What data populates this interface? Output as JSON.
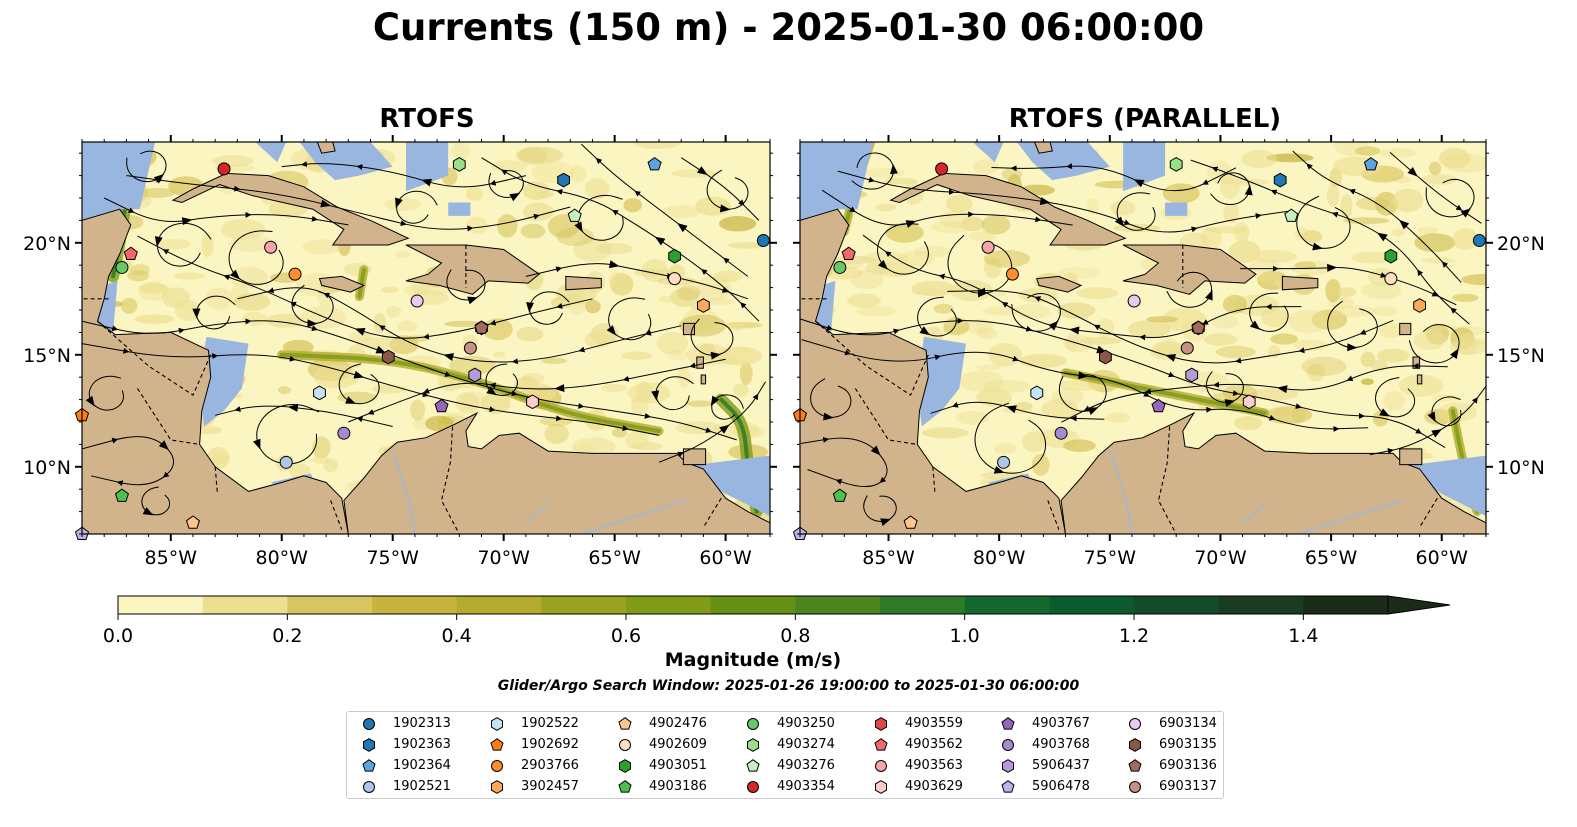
{
  "suptitle": "Currents (150 m) - 2025-01-30 06:00:00",
  "panels": [
    {
      "title": "RTOFS"
    },
    {
      "title": "RTOFS (PARALLEL)"
    }
  ],
  "colors": {
    "land": "#d2b48c",
    "shallow_water": "#99b6e0",
    "coast": "#000000",
    "border": "#000000",
    "river": "#9db8d9",
    "streamline": "#000000"
  },
  "colorbar": {
    "label": "Magnitude (m/s)",
    "ticks": [
      "0.0",
      "0.2",
      "0.4",
      "0.6",
      "0.8",
      "1.0",
      "1.2",
      "1.4"
    ],
    "range": [
      0,
      1.5
    ],
    "extend": "max",
    "colors": [
      "#fbf5c2",
      "#ecdf92",
      "#d8c560",
      "#c7b43f",
      "#b3aa2e",
      "#9aa221",
      "#7f9b17",
      "#659014",
      "#4c841f",
      "#2f7a27",
      "#15682d",
      "#0c5a2d",
      "#144c2a",
      "#1a3c22",
      "#1a2c18"
    ]
  },
  "search_window": "Glider/Argo Search Window: 2025-01-26 19:00:00 to 2025-01-30 06:00:00",
  "chart_data": {
    "type": "map",
    "title": "Currents (150 m) - 2025-01-30 06:00:00",
    "variable": "current magnitude (m/s) with streamlines",
    "panels": [
      "RTOFS",
      "RTOFS (PARALLEL)"
    ],
    "xlim": [
      -89,
      -58
    ],
    "ylim": [
      7,
      24.5
    ],
    "xticks": [
      "85°W",
      "80°W",
      "75°W",
      "70°W",
      "65°W",
      "60°W"
    ],
    "xtick_values": [
      -85,
      -80,
      -75,
      -70,
      -65,
      -60
    ],
    "yticks": [
      "10°N",
      "15°N",
      "20°N"
    ],
    "ytick_values": [
      10,
      15,
      20
    ],
    "floats": [
      {
        "id": "1902313",
        "lon": -58.3,
        "lat": 20.1,
        "marker": "circle",
        "color": "#1f77b4"
      },
      {
        "id": "1902363",
        "lon": -67.3,
        "lat": 22.8,
        "marker": "hexagon",
        "color": "#1f77b4"
      },
      {
        "id": "1902364",
        "lon": -63.2,
        "lat": 23.5,
        "marker": "pentagon",
        "color": "#5aa5e0"
      },
      {
        "id": "1902521",
        "lon": -79.8,
        "lat": 10.2,
        "marker": "circle",
        "color": "#aec7e8"
      },
      {
        "id": "1902522",
        "lon": -78.3,
        "lat": 13.3,
        "marker": "hexagon",
        "color": "#c6e2f5"
      },
      {
        "id": "1902692",
        "lon": -89.0,
        "lat": 12.3,
        "marker": "pentagon",
        "color": "#ff7f0e"
      },
      {
        "id": "2903766",
        "lon": -79.4,
        "lat": 18.6,
        "marker": "circle",
        "color": "#ff8c2e"
      },
      {
        "id": "3902457",
        "lon": -61.0,
        "lat": 17.2,
        "marker": "hexagon",
        "color": "#ffa75a"
      },
      {
        "id": "4902476",
        "lon": -84.0,
        "lat": 7.5,
        "marker": "pentagon",
        "color": "#ffc68c"
      },
      {
        "id": "4902609",
        "lon": -62.3,
        "lat": 18.4,
        "marker": "circle",
        "color": "#ffe0c0"
      },
      {
        "id": "4903051",
        "lon": -62.3,
        "lat": 19.4,
        "marker": "hexagon",
        "color": "#2ca02c"
      },
      {
        "id": "4903186",
        "lon": -87.2,
        "lat": 8.7,
        "marker": "pentagon",
        "color": "#4cc24c"
      },
      {
        "id": "4903250",
        "lon": -87.2,
        "lat": 18.9,
        "marker": "circle",
        "color": "#66c866"
      },
      {
        "id": "4903274",
        "lon": -72.0,
        "lat": 23.5,
        "marker": "hexagon",
        "color": "#98df8a"
      },
      {
        "id": "4903276",
        "lon": -66.8,
        "lat": 21.2,
        "marker": "pentagon",
        "color": "#c7f0c0"
      },
      {
        "id": "4903354",
        "lon": -82.6,
        "lat": 23.3,
        "marker": "circle",
        "color": "#d62728"
      },
      {
        "id": "4903559",
        "lon": -71.0,
        "lat": 16.2,
        "marker": "hexagon",
        "color": "#e04848"
      },
      {
        "id": "4903562",
        "lon": -86.8,
        "lat": 19.5,
        "marker": "pentagon",
        "color": "#f06868"
      },
      {
        "id": "4903563",
        "lon": -80.5,
        "lat": 19.8,
        "marker": "circle",
        "color": "#f4a6a6"
      },
      {
        "id": "4903629",
        "lon": -68.7,
        "lat": 12.9,
        "marker": "hexagon",
        "color": "#ffcccc"
      },
      {
        "id": "4903767",
        "lon": -72.8,
        "lat": 12.7,
        "marker": "pentagon",
        "color": "#9467bd"
      },
      {
        "id": "4903768",
        "lon": -77.2,
        "lat": 11.5,
        "marker": "circle",
        "color": "#a888d0"
      },
      {
        "id": "5906437",
        "lon": -71.3,
        "lat": 14.1,
        "marker": "hexagon",
        "color": "#b69ad9"
      },
      {
        "id": "5906478",
        "lon": -89.0,
        "lat": 7.0,
        "marker": "pentagon",
        "color": "#c5b0e8"
      },
      {
        "id": "6903134",
        "lon": -73.9,
        "lat": 17.4,
        "marker": "circle",
        "color": "#e8caf2"
      },
      {
        "id": "6903135",
        "lon": -75.2,
        "lat": 14.9,
        "marker": "hexagon",
        "color": "#8c564b"
      },
      {
        "id": "6903136",
        "lon": -71.0,
        "lat": 16.2,
        "marker": "pentagon",
        "color": "#a46a5c"
      },
      {
        "id": "6903137",
        "lon": -71.5,
        "lat": 15.3,
        "marker": "circle",
        "color": "#c49184"
      }
    ]
  }
}
